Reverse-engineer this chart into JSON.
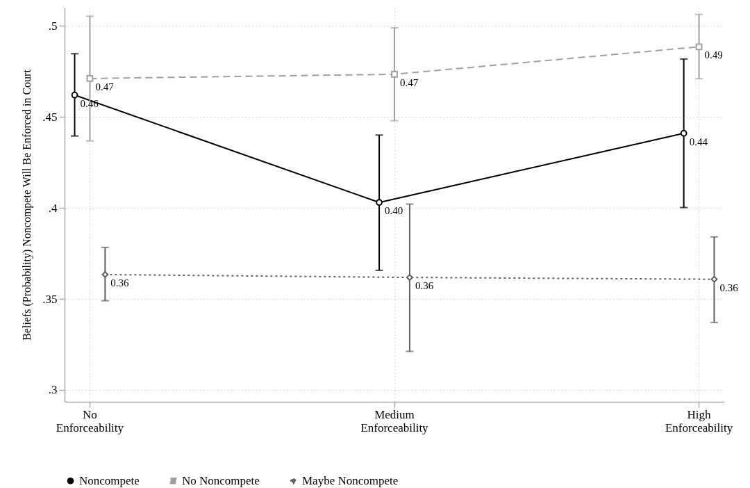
{
  "chart_data": {
    "type": "line",
    "ylabel": "Beliefs (Probability) Noncompete Will Be Enforced in Court",
    "categories": [
      "No Enforceability",
      "Medium Enforceability",
      "High Enforceability"
    ],
    "ylim": [
      0.2935,
      0.51
    ],
    "yticks": [
      {
        "value": 0.3,
        "label": ".3"
      },
      {
        "value": 0.35,
        "label": ".35"
      },
      {
        "value": 0.4,
        "label": ".4"
      },
      {
        "value": 0.45,
        "label": ".45"
      },
      {
        "value": 0.5,
        "label": ".5"
      }
    ],
    "grid": true,
    "legend": "bottom",
    "series": [
      {
        "name": "Noncompete",
        "color": "#000000",
        "line_style": "solid",
        "marker": "circle",
        "values": [
          0.462,
          0.403,
          0.441
        ],
        "errors": [
          [
            0.4395,
            0.4847
          ],
          [
            0.3657,
            0.44
          ],
          [
            0.4002,
            0.4818
          ]
        ],
        "value_labels": [
          "0.46",
          "0.40",
          "0.44"
        ]
      },
      {
        "name": "No Noncompete",
        "color": "#a0a0a0",
        "line_style": "dashed",
        "marker": "square",
        "values": [
          0.4711,
          0.4734,
          0.4885
        ],
        "errors": [
          [
            0.4368,
            0.5053
          ],
          [
            0.4479,
            0.4989
          ],
          [
            0.471,
            0.5063
          ]
        ],
        "value_labels": [
          "0.47",
          "0.47",
          "0.49"
        ]
      },
      {
        "name": "Maybe Noncompete",
        "color": "#606060",
        "line_style": "dotted",
        "marker": "diamond",
        "values": [
          0.3634,
          0.3618,
          0.3608
        ],
        "errors": [
          [
            0.349,
            0.3783
          ],
          [
            0.3212,
            0.4021
          ],
          [
            0.3371,
            0.3841
          ]
        ],
        "value_labels": [
          "0.36",
          "0.36",
          "0.36"
        ]
      }
    ]
  }
}
